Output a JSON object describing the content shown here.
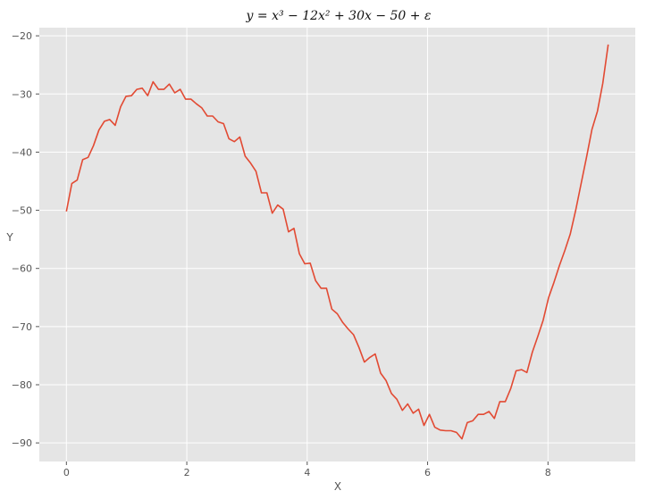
{
  "chart_data": {
    "type": "line",
    "title": "y = x³ − 12x² + 30x − 50 + ε",
    "xlabel": "X",
    "ylabel": "Y",
    "xlim": [
      -0.45,
      9.45
    ],
    "ylim": [
      -93.2,
      -18.6
    ],
    "xticks": [
      0,
      2,
      4,
      6,
      8
    ],
    "yticks": [
      -20,
      -30,
      -40,
      -50,
      -60,
      -70,
      -80,
      -90
    ],
    "xtick_labels": [
      "0",
      "2",
      "4",
      "6",
      "8"
    ],
    "ytick_labels": [
      "−20",
      "−30",
      "−40",
      "−50",
      "−60",
      "−70",
      "−80",
      "−90"
    ],
    "grid": true,
    "series": [
      {
        "color": "#e24a33",
        "x": [
          0.0,
          0.09,
          0.18,
          0.27,
          0.36,
          0.45,
          0.54,
          0.63,
          0.72,
          0.81,
          0.9,
          0.99,
          1.08,
          1.17,
          1.26,
          1.35,
          1.44,
          1.53,
          1.62,
          1.71,
          1.8,
          1.89,
          1.98,
          2.07,
          2.16,
          2.25,
          2.34,
          2.43,
          2.52,
          2.61,
          2.7,
          2.79,
          2.88,
          2.97,
          3.06,
          3.15,
          3.24,
          3.33,
          3.42,
          3.51,
          3.6,
          3.69,
          3.78,
          3.87,
          3.96,
          4.05,
          4.14,
          4.23,
          4.32,
          4.41,
          4.5,
          4.59,
          4.68,
          4.77,
          4.86,
          4.95,
          5.04,
          5.13,
          5.22,
          5.31,
          5.4,
          5.49,
          5.58,
          5.67,
          5.76,
          5.85,
          5.94,
          6.03,
          6.12,
          6.21,
          6.3,
          6.39,
          6.48,
          6.57,
          6.66,
          6.75,
          6.84,
          6.93,
          7.02,
          7.11,
          7.2,
          7.29,
          7.38,
          7.47,
          7.56,
          7.65,
          7.74,
          7.83,
          7.92,
          8.01,
          8.1,
          8.19,
          8.28,
          8.37,
          8.46,
          8.55,
          8.64,
          8.73,
          8.82,
          8.91,
          9.0
        ],
        "y": [
          -50.2,
          -45.4,
          -44.8,
          -41.3,
          -40.9,
          -38.9,
          -36.2,
          -34.7,
          -34.4,
          -35.4,
          -32.2,
          -30.4,
          -30.3,
          -29.2,
          -29.0,
          -30.3,
          -27.9,
          -29.2,
          -29.2,
          -28.3,
          -29.8,
          -29.2,
          -30.9,
          -30.9,
          -31.7,
          -32.4,
          -33.8,
          -33.8,
          -34.8,
          -35.1,
          -37.7,
          -38.2,
          -37.4,
          -40.7,
          -41.9,
          -43.3,
          -47.0,
          -47.0,
          -50.5,
          -49.1,
          -49.8,
          -53.7,
          -53.1,
          -57.5,
          -59.2,
          -59.1,
          -62.1,
          -63.4,
          -63.4,
          -67.0,
          -67.8,
          -69.3,
          -70.4,
          -71.4,
          -73.6,
          -76.1,
          -75.3,
          -74.7,
          -78.0,
          -79.3,
          -81.5,
          -82.5,
          -84.4,
          -83.3,
          -84.9,
          -84.2,
          -87.0,
          -85.1,
          -87.3,
          -87.8,
          -87.9,
          -87.9,
          -88.2,
          -89.3,
          -86.5,
          -86.2,
          -85.1,
          -85.1,
          -84.6,
          -85.8,
          -82.9,
          -82.9,
          -80.7,
          -77.6,
          -77.4,
          -77.9,
          -74.4,
          -71.7,
          -68.9,
          -65.0,
          -62.4,
          -59.5,
          -56.9,
          -54.1,
          -50.0,
          -45.4,
          -40.9,
          -36.1,
          -33.0,
          -28.2,
          -21.5
        ]
      }
    ]
  }
}
